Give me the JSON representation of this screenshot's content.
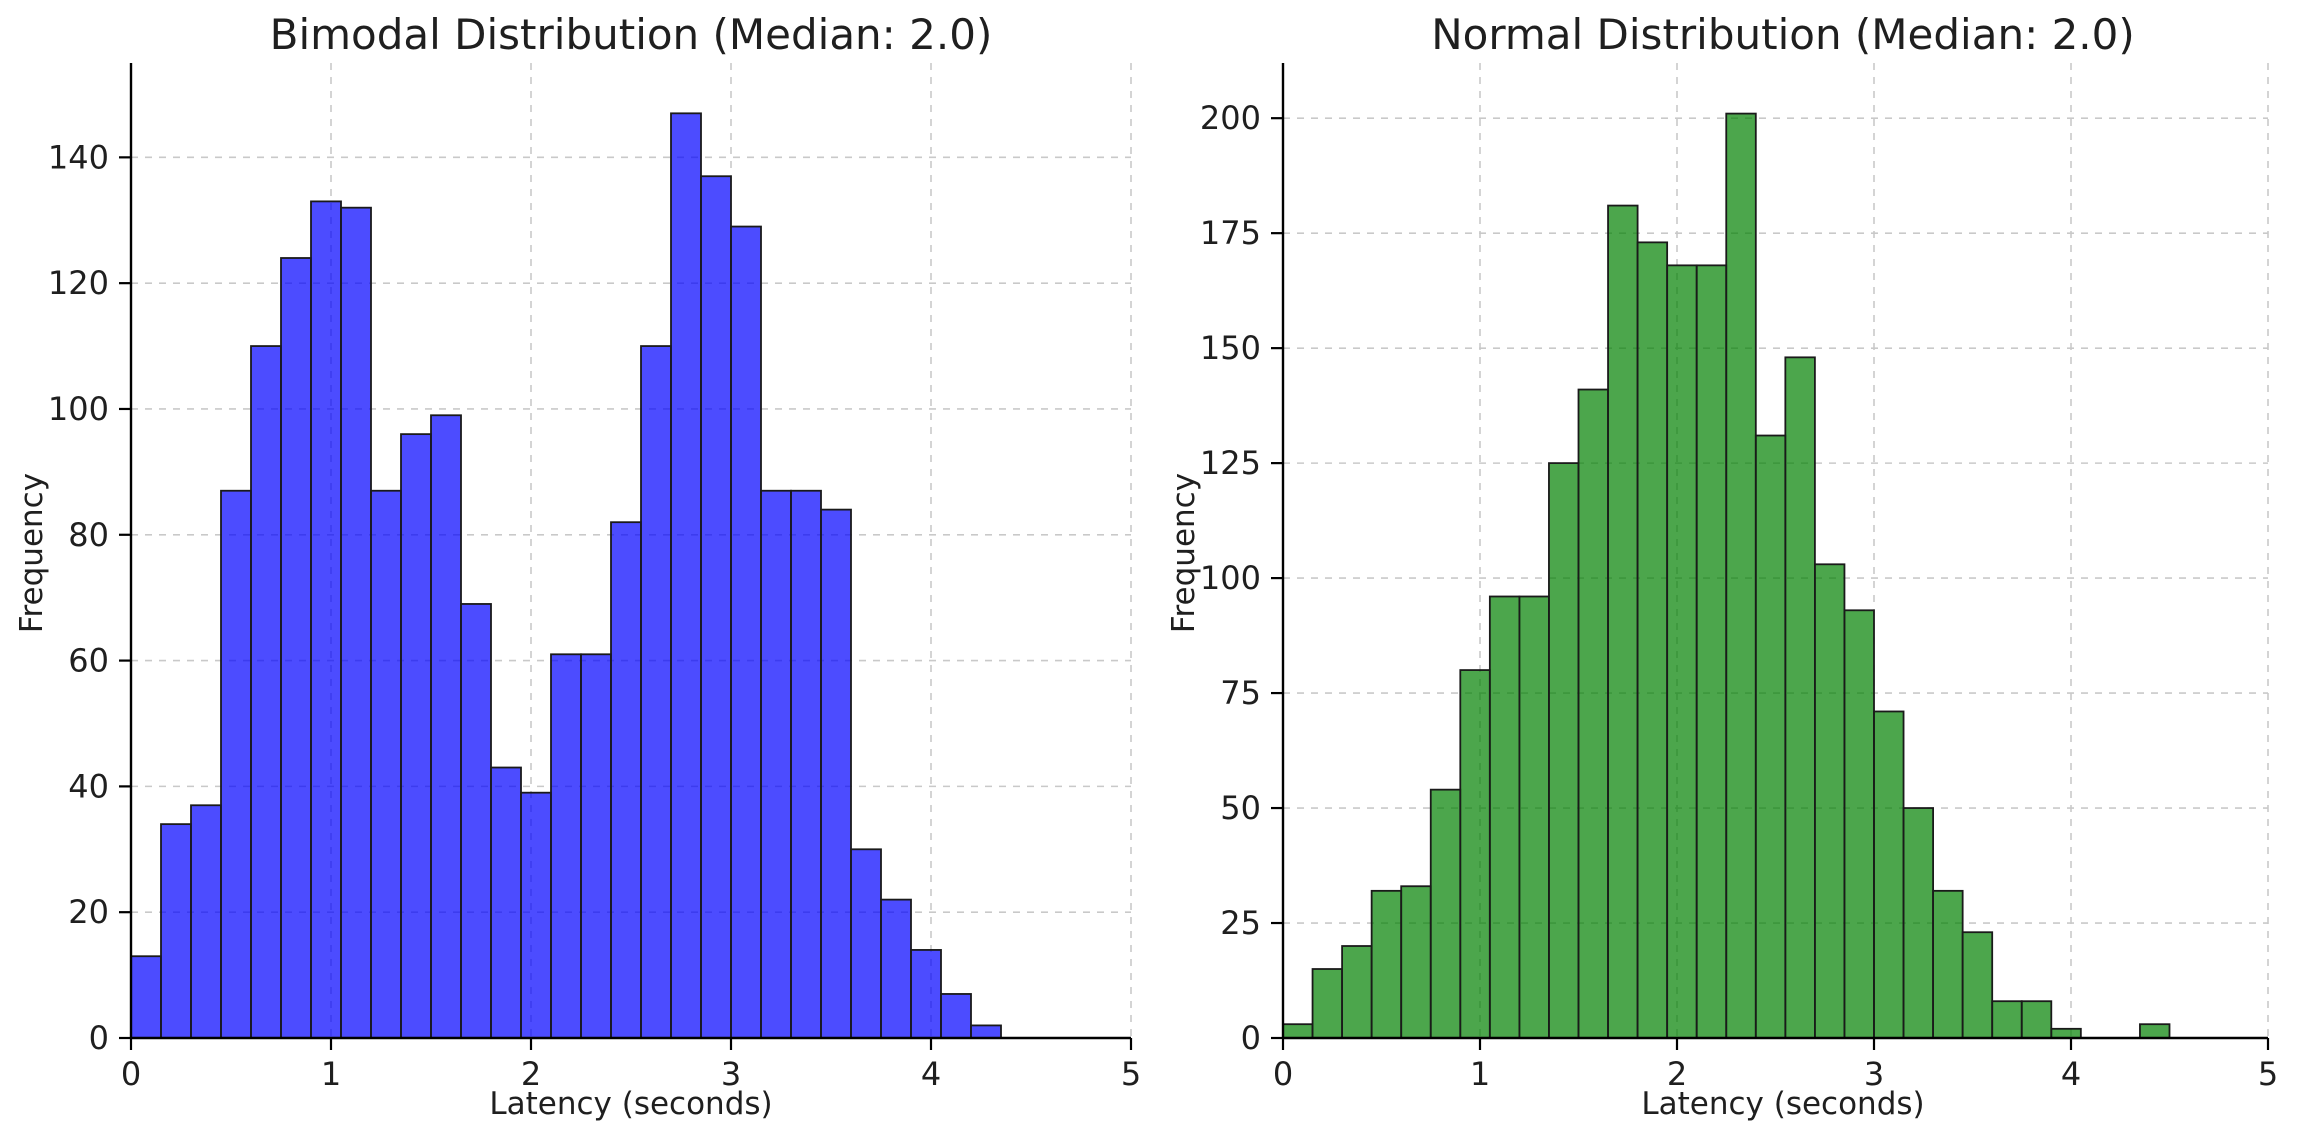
{
  "figure": {
    "background": "#ffffff",
    "grid_color": "#c9c9c9",
    "text_color": "#1f1f1f",
    "spine_color": "#000000"
  },
  "chart_data": [
    {
      "type": "bar",
      "subtype": "histogram",
      "title": "Bimodal Distribution (Median: 2.0)",
      "xlabel": "Latency (seconds)",
      "ylabel": "Frequency",
      "bar_fill": "#0000ff",
      "bar_fill_opacity": 0.7,
      "bar_edge": "#1a1a1a",
      "bin_start": 0.0,
      "bin_width": 0.15,
      "values": [
        13,
        34,
        37,
        87,
        110,
        124,
        133,
        132,
        87,
        96,
        99,
        69,
        43,
        39,
        61,
        61,
        82,
        110,
        147,
        137,
        129,
        87,
        87,
        84,
        30,
        22,
        14,
        7,
        2,
        0
      ],
      "xlim": [
        0,
        5
      ],
      "ylim": [
        0,
        155
      ],
      "xticks": [
        "0",
        "1",
        "2",
        "3",
        "4",
        "5"
      ],
      "xtick_values": [
        0,
        1,
        2,
        3,
        4,
        5
      ],
      "yticks": [
        "0",
        "20",
        "40",
        "60",
        "80",
        "100",
        "120",
        "140"
      ],
      "ytick_values": [
        0,
        20,
        40,
        60,
        80,
        100,
        120,
        140
      ],
      "grid": "dashed",
      "legend": "none"
    },
    {
      "type": "bar",
      "subtype": "histogram",
      "title": "Normal Distribution (Median: 2.0)",
      "xlabel": "Latency (seconds)",
      "ylabel": "Frequency",
      "bar_fill": "#008000",
      "bar_fill_opacity": 0.7,
      "bar_edge": "#1a1a1a",
      "bin_start": 0.0,
      "bin_width": 0.15,
      "values": [
        3,
        15,
        20,
        32,
        33,
        54,
        80,
        96,
        96,
        125,
        141,
        181,
        173,
        168,
        168,
        201,
        131,
        148,
        103,
        93,
        71,
        50,
        32,
        23,
        8,
        8,
        2,
        0,
        0,
        3
      ],
      "xlim": [
        0,
        5
      ],
      "ylim": [
        0,
        212
      ],
      "xticks": [
        "0",
        "1",
        "2",
        "3",
        "4",
        "5"
      ],
      "xtick_values": [
        0,
        1,
        2,
        3,
        4,
        5
      ],
      "yticks": [
        "0",
        "25",
        "50",
        "75",
        "100",
        "125",
        "150",
        "175",
        "200"
      ],
      "ytick_values": [
        0,
        25,
        50,
        75,
        100,
        125,
        150,
        175,
        200
      ],
      "grid": "dashed",
      "legend": "none"
    }
  ]
}
